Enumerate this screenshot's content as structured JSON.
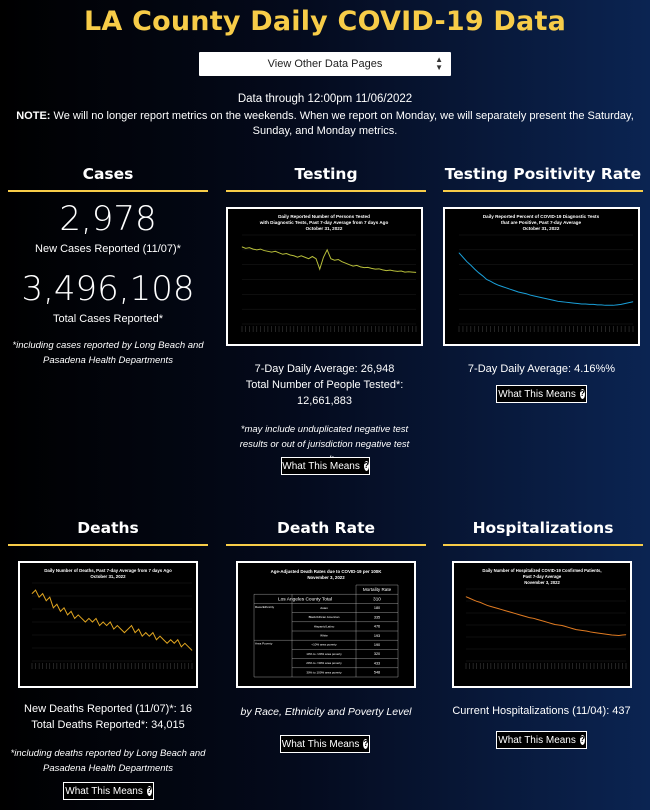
{
  "header": {
    "title": "LA County Daily COVID-19 Data",
    "select_label": "View Other Data Pages",
    "data_through": "Data through 12:00pm 11/06/2022",
    "note_label": "NOTE:",
    "note_text": " We will no longer report metrics on the weekends. When we report on Monday, we will separately present the Saturday, Sunday, and Monday metrics."
  },
  "cases": {
    "title": "Cases",
    "new_value": "2,978",
    "new_label": "New Cases Reported (11/07)*",
    "total_value": "3,496,108",
    "total_label": "Total Cases Reported*",
    "footnote": "*including cases reported by Long Beach and Pasadena Health Departments"
  },
  "testing": {
    "title": "Testing",
    "chart_title_l1": "Daily Reported Number of Persons Tested",
    "chart_title_l2": "with Diagnostic Tests, Past 7-day Average from 7 days Ago",
    "chart_title_l3": "October 31, 2022",
    "avg": "7-Day Daily Average: 26,948",
    "total_label": "Total Number of People Tested*:",
    "total_value": "12,661,883",
    "footnote": "*may include unduplicated negative test results or out of jurisdiction negative test results",
    "button": "What This Means"
  },
  "positivity": {
    "title": "Testing Positivity Rate",
    "chart_title_l1": "Daily Reported Percent of COVID-19 Diagnostic Tests",
    "chart_title_l2": "that are Positive, Past 7-day Average",
    "chart_title_l3": "October 31, 2022",
    "avg": "7-Day Daily Average: 4.16%%",
    "button": "What This Means"
  },
  "deaths": {
    "title": "Deaths",
    "chart_title_l1": "Daily Number of Deaths, Past 7-day Average from 7 days Ago",
    "chart_title_l2": "October 31, 2022",
    "new_label": "New Deaths Reported (11/07)*: 16",
    "total_label": "Total Deaths Reported*: 34,015",
    "footnote": "*including deaths reported by Long Beach and Pasadena Health Departments",
    "button": "What This Means"
  },
  "death_rate": {
    "title": "Death Rate",
    "chart_title_l1": "Age-Adjusted Death Rates due to COVID-19 per 100K",
    "chart_title_l2": "November 3, 2022",
    "table_header": "Mortality Rate",
    "total_label": "Los Angeles County Total",
    "total_value": "310",
    "rows": [
      {
        "group": "Race/Ethnicity",
        "label": "Asian",
        "value": "180"
      },
      {
        "group": "",
        "label": "Black/African American",
        "value": "335"
      },
      {
        "group": "",
        "label": "Hispanic/Latino",
        "value": "476"
      },
      {
        "group": "",
        "label": "White",
        "value": "193"
      },
      {
        "group": "Area Poverty",
        "label": "<10% area poverty",
        "value": "190"
      },
      {
        "group": "",
        "label": "10% to <20% area poverty",
        "value": "320"
      },
      {
        "group": "",
        "label": "20% to <30% area poverty",
        "value": "433"
      },
      {
        "group": "",
        "label": "30% to 100% area poverty",
        "value": "548"
      }
    ],
    "caption": "by Race, Ethnicity and Poverty Level",
    "button": "What This Means"
  },
  "hospitalizations": {
    "title": "Hospitalizations",
    "chart_title_l1": "Daily Number of Hospitalized COVID-19 Confirmed Patients,",
    "chart_title_l2": "Past 7-day Average",
    "chart_title_l3": "November 3, 2022",
    "current": "Current Hospitalizations (11/04): 437",
    "button": "What This Means"
  },
  "colors": {
    "title_gold": "#f7cc48",
    "testing_line": "#b7be3a",
    "positivity_line": "#1a9fd8",
    "deaths_line": "#e0a520",
    "hosp_line": "#e07b22"
  },
  "chart_data": [
    {
      "type": "line",
      "title": "Daily Reported Number of Persons Tested with Diagnostic Tests, Past 7-day Average from 7 days Ago",
      "subtitle": "October 31, 2022",
      "series": [
        {
          "values": [
            52,
            51,
            51.5,
            50.5,
            50,
            50.5,
            49.5,
            49,
            48.5,
            49,
            48,
            47,
            47.5,
            46.5,
            46,
            45,
            46,
            45,
            44,
            45.5,
            44,
            37,
            45,
            50,
            44,
            43,
            43.5,
            42,
            41,
            40,
            39,
            39.5,
            38.5,
            38,
            38.2,
            37.5,
            37,
            37.2,
            36.5,
            36,
            36.3,
            35.8,
            35.5,
            35.7,
            35,
            35.2,
            35,
            34.8
          ]
        }
      ],
      "ylim": [
        0,
        60
      ]
    },
    {
      "type": "line",
      "title": "Daily Reported Percent of COVID-19 Diagnostic Tests that are Positive, Past 7-day Average",
      "subtitle": "October 31, 2022",
      "series": [
        {
          "values": [
            16,
            15,
            14,
            13.2,
            12.3,
            11.5,
            10.8,
            10,
            9.6,
            9.1,
            8.7,
            8.4,
            8.1,
            7.8,
            7.5,
            7.2,
            7,
            6.8,
            6.5,
            6.3,
            6.1,
            5.9,
            5.7,
            5.5,
            5.3,
            5.1,
            5,
            4.9,
            4.8,
            4.7,
            4.6,
            4.5,
            4.5,
            4.4,
            4.4,
            4.3,
            4.3,
            4.2,
            4.2,
            4.2,
            4.3,
            4.4,
            4.6,
            4.8,
            5
          ]
        }
      ],
      "ylim": [
        0,
        20
      ]
    },
    {
      "type": "line",
      "title": "Daily Number of Deaths, Past 7-day Average from 7 days Ago",
      "subtitle": "October 31, 2022",
      "series": [
        {
          "values": [
            19,
            20,
            18,
            19,
            17,
            18,
            15,
            16,
            14,
            15,
            13,
            14,
            12,
            13,
            12,
            11,
            12,
            11,
            12,
            10,
            11,
            10,
            11,
            9,
            10,
            9,
            8,
            9,
            10,
            8,
            9,
            7,
            8,
            7,
            8,
            6,
            7,
            6,
            5,
            6,
            5,
            6,
            4,
            5,
            4,
            3
          ]
        }
      ],
      "ylim": [
        0,
        22
      ]
    },
    {
      "type": "table",
      "title": "Age-Adjusted Death Rates due to COVID-19 per 100K",
      "subtitle": "November 3, 2022",
      "columns": [
        "",
        "",
        "Mortality Rate"
      ],
      "rows": [
        [
          "Los Angeles County Total",
          "",
          "310"
        ],
        [
          "Race/Ethnicity",
          "Asian",
          "180"
        ],
        [
          "",
          "Black/African American",
          "335"
        ],
        [
          "",
          "Hispanic/Latino",
          "476"
        ],
        [
          "",
          "White",
          "193"
        ],
        [
          "Area Poverty",
          "<10% area poverty",
          "190"
        ],
        [
          "",
          "10% to <20% area poverty",
          "320"
        ],
        [
          "",
          "20% to <30% area poverty",
          "433"
        ],
        [
          "",
          "30% to 100% area poverty",
          "548"
        ]
      ]
    },
    {
      "type": "line",
      "title": "Daily Number of Hospitalized COVID-19 Confirmed Patients, Past 7-day Average",
      "subtitle": "November 3, 2022",
      "series": [
        {
          "values": [
            1250,
            1220,
            1190,
            1160,
            1140,
            1110,
            1080,
            1060,
            1040,
            1020,
            1000,
            980,
            960,
            940,
            920,
            900,
            880,
            860,
            840,
            830,
            810,
            790,
            770,
            750,
            730,
            710,
            700,
            690,
            670,
            650,
            630,
            610,
            600,
            590,
            580,
            565,
            555,
            545,
            535,
            525,
            515,
            505,
            500,
            495,
            505,
            510
          ]
        }
      ],
      "ylim": [
        0,
        1400
      ]
    }
  ]
}
